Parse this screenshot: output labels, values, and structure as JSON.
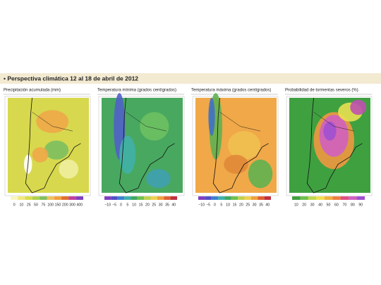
{
  "header": {
    "title": "• Perspectiva climática 12 al 18 de abril de 2012"
  },
  "panels": [
    {
      "title": "Precipitación acumulada (mm)",
      "scale": [
        "0",
        "10",
        "25",
        "50",
        "75",
        "100",
        "150",
        "200",
        "300",
        "400"
      ]
    },
    {
      "title": "Temperatura mínima (grados centígrados)",
      "scale": [
        "−10",
        "−5",
        "0",
        "5",
        "10",
        "15",
        "20",
        "25",
        "30",
        "35",
        "40"
      ]
    },
    {
      "title": "Temperatura máxima (grados centígrados)",
      "scale": [
        "−10",
        "−5",
        "0",
        "5",
        "10",
        "15",
        "20",
        "25",
        "30",
        "35",
        "40"
      ]
    },
    {
      "title": "Probabilidad de tormentas severos (%)",
      "scale": [
        "10",
        "20",
        "30",
        "40",
        "50",
        "60",
        "70",
        "80",
        "90"
      ]
    }
  ]
}
